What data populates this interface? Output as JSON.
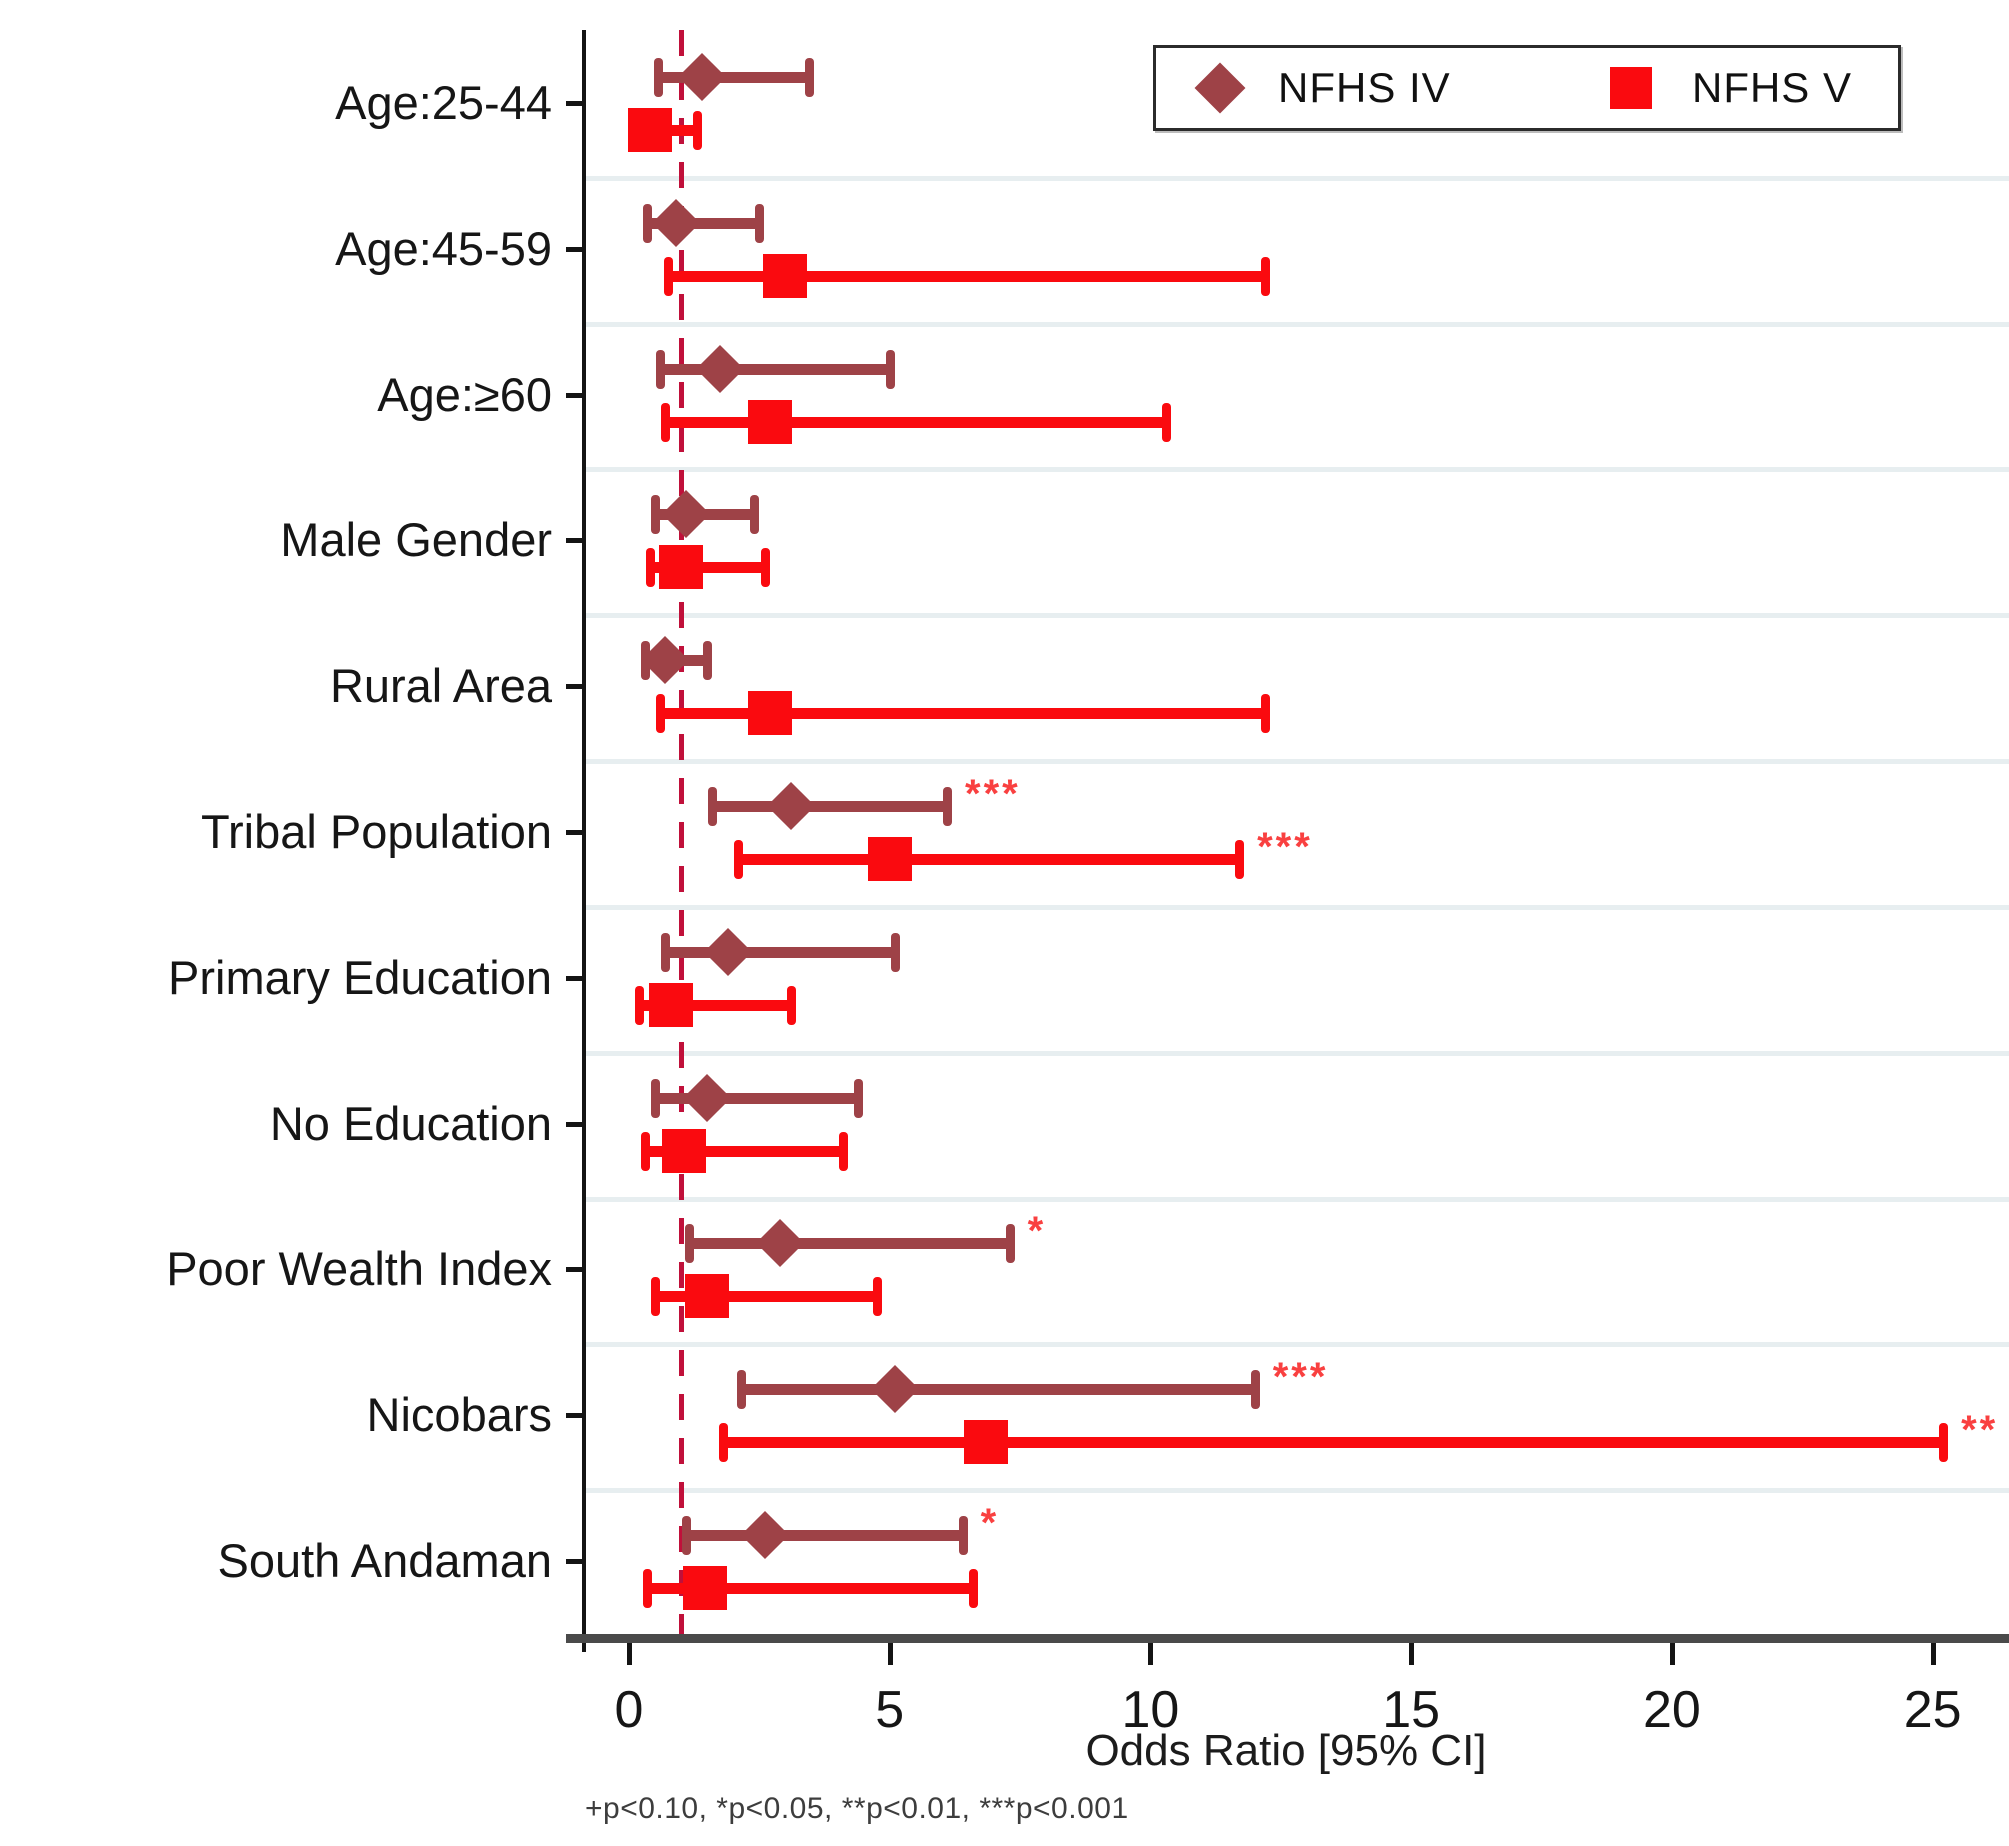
{
  "chart_data": {
    "type": "forest",
    "title": "",
    "xlabel": "Odds Ratio [95% CI]",
    "footnote": "+p<0.10, *p<0.05, **p<0.01, ***p<0.001",
    "xticks": [
      0,
      5,
      10,
      15,
      20,
      25
    ],
    "xlim": [
      -0.9,
      26.1
    ],
    "refline_x": 1,
    "grid": "horizontal category separator lines",
    "legend_position": "top-right-inside",
    "categories": [
      "Age:25-44",
      "Age:45-59",
      "Age:≥60",
      "Male Gender",
      "Rural Area",
      "Tribal Population",
      "Primary Education",
      "No Education",
      "Poor Wealth Index",
      "Nicobars",
      "South Andaman"
    ],
    "series": [
      {
        "name": "NFHS IV",
        "marker": "diamond",
        "color": "#9e4247",
        "points": [
          {
            "or": 1.4,
            "lo": 0.55,
            "hi": 3.45,
            "sig": ""
          },
          {
            "or": 0.9,
            "lo": 0.35,
            "hi": 2.5,
            "sig": ""
          },
          {
            "or": 1.75,
            "lo": 0.6,
            "hi": 5.0,
            "sig": ""
          },
          {
            "or": 1.1,
            "lo": 0.5,
            "hi": 2.4,
            "sig": ""
          },
          {
            "or": 0.7,
            "lo": 0.3,
            "hi": 1.5,
            "sig": ""
          },
          {
            "or": 3.1,
            "lo": 1.6,
            "hi": 6.1,
            "sig": "***"
          },
          {
            "or": 1.9,
            "lo": 0.7,
            "hi": 5.1,
            "sig": ""
          },
          {
            "or": 1.5,
            "lo": 0.5,
            "hi": 4.4,
            "sig": ""
          },
          {
            "or": 2.9,
            "lo": 1.15,
            "hi": 7.3,
            "sig": "*"
          },
          {
            "or": 5.1,
            "lo": 2.15,
            "hi": 12.0,
            "sig": "***"
          },
          {
            "or": 2.6,
            "lo": 1.1,
            "hi": 6.4,
            "sig": "*"
          }
        ]
      },
      {
        "name": "NFHS V",
        "marker": "square",
        "color": "#fa0a0f",
        "points": [
          {
            "or": 0.4,
            "lo": 0.15,
            "hi": 1.3,
            "sig": ""
          },
          {
            "or": 3.0,
            "lo": 0.75,
            "hi": 12.2,
            "sig": ""
          },
          {
            "or": 2.7,
            "lo": 0.7,
            "hi": 10.3,
            "sig": ""
          },
          {
            "or": 1.0,
            "lo": 0.4,
            "hi": 2.6,
            "sig": ""
          },
          {
            "or": 2.7,
            "lo": 0.6,
            "hi": 12.2,
            "sig": ""
          },
          {
            "or": 5.0,
            "lo": 2.1,
            "hi": 11.7,
            "sig": "***"
          },
          {
            "or": 0.8,
            "lo": 0.2,
            "hi": 3.1,
            "sig": ""
          },
          {
            "or": 1.05,
            "lo": 0.3,
            "hi": 4.1,
            "sig": ""
          },
          {
            "or": 1.5,
            "lo": 0.5,
            "hi": 4.75,
            "sig": ""
          },
          {
            "or": 6.85,
            "lo": 1.8,
            "hi": 25.2,
            "sig": "**"
          },
          {
            "or": 1.45,
            "lo": 0.35,
            "hi": 6.6,
            "sig": ""
          }
        ]
      }
    ],
    "colors": {
      "reference_line": "#c0103a",
      "gridline": "#e7eef0",
      "axis": "#3f3f3f",
      "significance": "#f94040"
    }
  }
}
